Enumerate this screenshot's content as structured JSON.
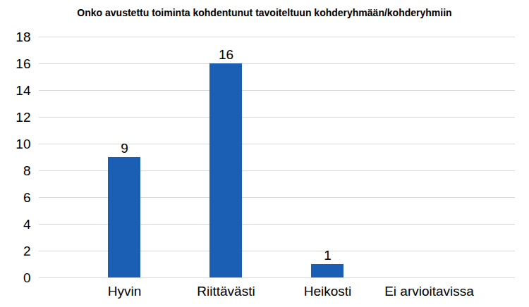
{
  "chart_data": {
    "type": "bar",
    "title": "Onko avustettu toiminta kohdentunut tavoiteltuun kohderyhmään/kohderyhmiin",
    "categories": [
      "Hyvin",
      "Riittävästi",
      "Heikosti",
      "Ei arvioitavissa"
    ],
    "values": [
      9,
      16,
      1,
      null
    ],
    "color": "#1a5fb4",
    "ylim": [
      0,
      18
    ],
    "yticks": [
      0,
      2,
      4,
      6,
      8,
      10,
      12,
      14,
      16,
      18
    ],
    "grid": true,
    "data_labels": true
  }
}
